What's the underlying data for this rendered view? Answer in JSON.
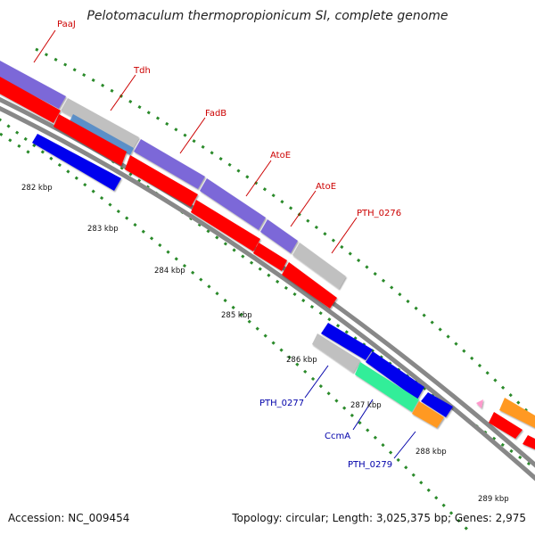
{
  "title": "Pelotomaculum thermopropionicum SI, complete genome",
  "footer": {
    "accession": "Accession: NC_009454",
    "summary": "Topology: circular; Length: 3,025,375 bp; Genes: 2,975"
  },
  "colors": {
    "purple": "#7b68d8",
    "red": "#ff0000",
    "gray": "#c0c0c0",
    "blue": "#0000ee",
    "teal": "#4a86c8",
    "green": "#33ee99",
    "orange": "#ff9922",
    "pink": "#ff99cc",
    "backbone": "#888888",
    "tick": "#2a8a2a",
    "label_red": "#cc0000",
    "label_blue": "#0000aa"
  },
  "kbp_labels": [
    "282 kbp",
    "283 kbp",
    "284 kbp",
    "285 kbp",
    "286 kbp",
    "287 kbp",
    "288 kbp",
    "289 kbp"
  ],
  "gene_labels": {
    "top": [
      "PaaJ",
      "Tdh",
      "FadB",
      "AtoE",
      "AtoE",
      "PTH_0276"
    ],
    "bottom": [
      "PTH_0277",
      "CcmA",
      "PTH_0279"
    ]
  }
}
